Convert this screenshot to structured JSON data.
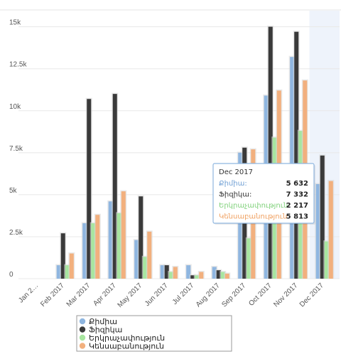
{
  "chart_data": {
    "type": "bar",
    "categories": [
      "Jan 2…",
      "Feb 2017",
      "Mar 2017",
      "Apr 2017",
      "May 2017",
      "Jun 2017",
      "Jul 2017",
      "Aug 2017",
      "Sep 2017",
      "Oct 2017",
      "Nov 2017",
      "Dec 2017"
    ],
    "y_ticks": [
      "0",
      "2.5k",
      "5k",
      "7.5k",
      "10k",
      "12.5k",
      "15k"
    ],
    "ylim": [
      0,
      16000
    ],
    "grid": true,
    "legend_position": "bottom-left",
    "highlighted_category": "Dec 2017",
    "series": [
      {
        "name": "Քիմիա",
        "color": "#8fb6e0",
        "values": [
          0,
          800,
          3300,
          4600,
          2300,
          800,
          800,
          700,
          7500,
          10900,
          13200,
          5632
        ]
      },
      {
        "name": "Ֆիզիկա",
        "color": "#3a3a3a",
        "values": [
          0,
          2700,
          10700,
          11000,
          4900,
          800,
          200,
          500,
          7800,
          15000,
          14700,
          7332
        ]
      },
      {
        "name": "Երկրաչափություն",
        "color": "#a8e6a0",
        "values": [
          0,
          800,
          3300,
          3900,
          1300,
          400,
          200,
          400,
          2400,
          8400,
          8800,
          2217
        ]
      },
      {
        "name": "Կենսաբանություն",
        "color": "#f2b07e",
        "values": [
          0,
          1500,
          3800,
          5200,
          2800,
          700,
          400,
          300,
          7700,
          11200,
          11800,
          5813
        ]
      }
    ],
    "tooltip": {
      "title": "Dec 2017",
      "rows": [
        {
          "label": "Քիմիա:",
          "value": "5 632",
          "color": "#6f9fd4"
        },
        {
          "label": "Ֆիզիկա:",
          "value": "7 332",
          "color": "#333333"
        },
        {
          "label": "Երկրաչափություն:",
          "value": "2 217",
          "color": "#7fd17a"
        },
        {
          "label": "Կենսաբանություն:",
          "value": "5 813",
          "color": "#f0a060"
        }
      ]
    }
  }
}
